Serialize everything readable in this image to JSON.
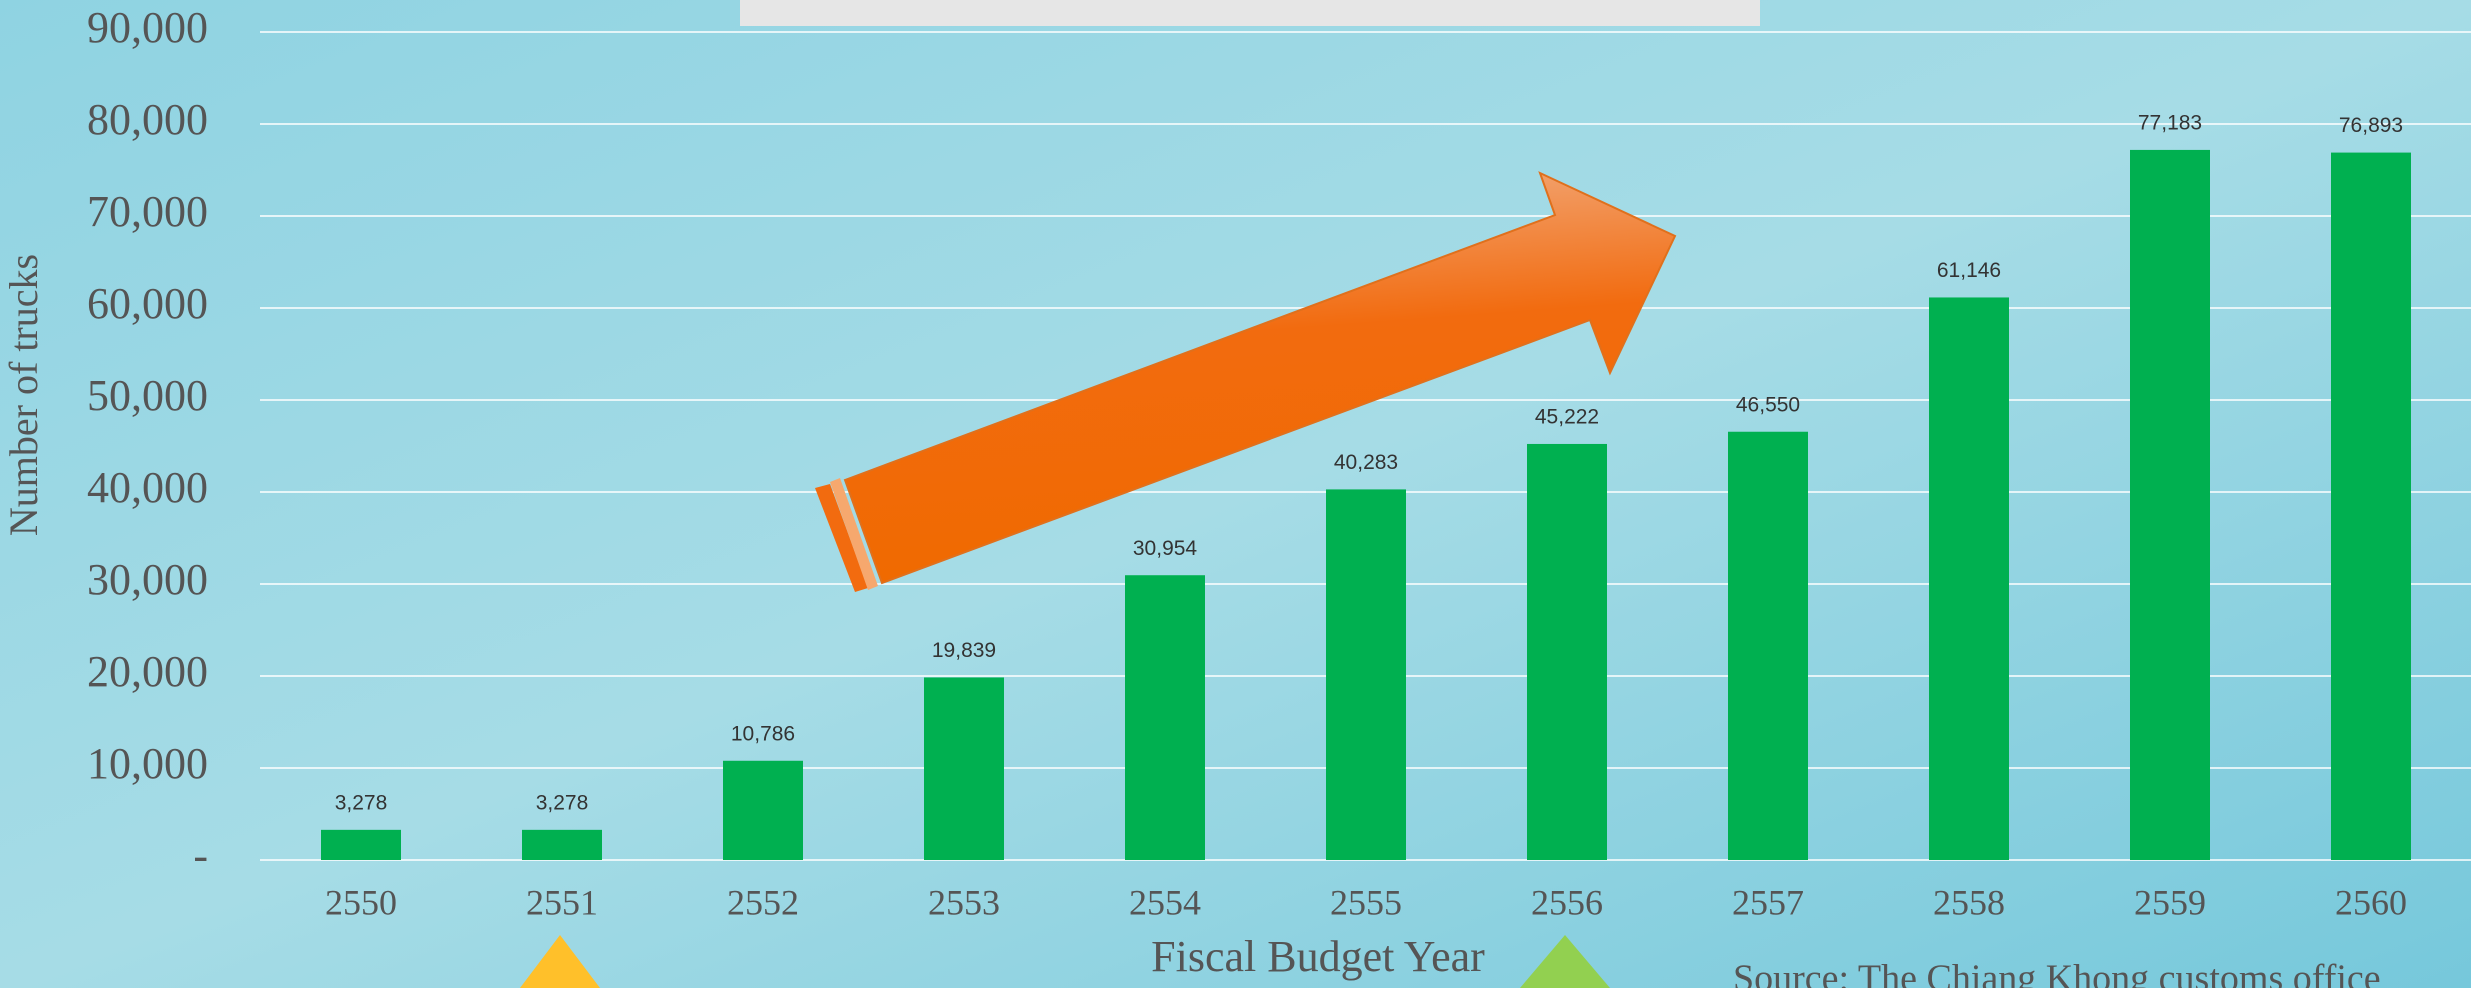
{
  "chart_data": {
    "type": "bar",
    "y_axis_label": "Number of trucks",
    "x_axis_label": "Fiscal Budget Year",
    "source": "Source: The Chiang Khong customs office",
    "categories": [
      "2550",
      "2551",
      "2552",
      "2553",
      "2554",
      "2555",
      "2556",
      "2557",
      "2558",
      "2559",
      "2560"
    ],
    "values": [
      3278,
      3278,
      10786,
      19839,
      30954,
      40283,
      45222,
      46550,
      61146,
      77183,
      76893
    ],
    "value_labels": [
      "3,278",
      "3,278",
      "10,786",
      "19,839",
      "30,954",
      "40,283",
      "45,222",
      "46,550",
      "61,146",
      "77,183",
      "76,893"
    ],
    "color": "#00b050",
    "ylim": [
      0,
      90000
    ],
    "yticks": [
      {
        "value": 0,
        "label": "-"
      },
      {
        "value": 10000,
        "label": "10,000"
      },
      {
        "value": 20000,
        "label": "20,000"
      },
      {
        "value": 30000,
        "label": "30,000"
      },
      {
        "value": 40000,
        "label": "40,000"
      },
      {
        "value": 50000,
        "label": "50,000"
      },
      {
        "value": 60000,
        "label": "60,000"
      },
      {
        "value": 70000,
        "label": "70,000"
      },
      {
        "value": 80000,
        "label": "80,000"
      },
      {
        "value": 90000,
        "label": "90,000"
      }
    ],
    "grid": true
  }
}
